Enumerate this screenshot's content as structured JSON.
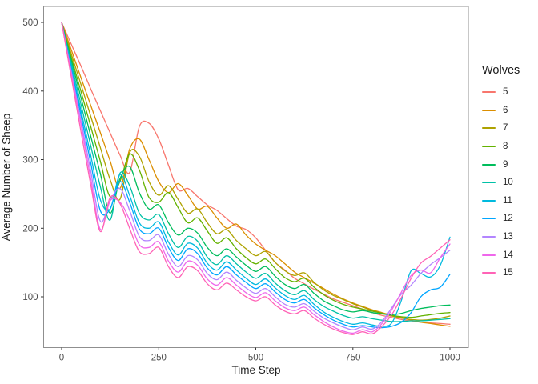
{
  "chart_data": {
    "type": "line",
    "title": "",
    "xlabel": "Time Step",
    "ylabel": "Average Number of Sheep",
    "legend_title": "Wolves",
    "legend_position": "right",
    "grid": false,
    "panel_background": "#FFFFFF",
    "panel_border_color": "#8F8F8F",
    "tick_color": "#333333",
    "tick_label_color": "#4D4D4D",
    "x_ticks": [
      0,
      250,
      500,
      750,
      1000
    ],
    "y_ticks": [
      100,
      200,
      300,
      400,
      500
    ],
    "xlim": [
      -46,
      1047
    ],
    "ylim": [
      26,
      523
    ],
    "x_step": 25,
    "x": [
      0,
      25,
      50,
      75,
      100,
      125,
      150,
      175,
      200,
      225,
      250,
      275,
      300,
      325,
      350,
      375,
      400,
      425,
      450,
      475,
      500,
      525,
      550,
      575,
      600,
      625,
      650,
      675,
      700,
      725,
      750,
      775,
      800,
      825,
      850,
      875,
      900,
      925,
      950,
      975,
      1000
    ],
    "series": [
      {
        "name": "5",
        "color": "#F8766D",
        "values": [
          500,
          468,
          436,
          403,
          371,
          339,
          307,
          281,
          348,
          353,
          330,
          292,
          256,
          258,
          246,
          234,
          226,
          214,
          203,
          198,
          186,
          168,
          150,
          139,
          127,
          119,
          111,
          104,
          97,
          92,
          87,
          82,
          77,
          73,
          70,
          67,
          65,
          63,
          62,
          61,
          60
        ]
      },
      {
        "name": "6",
        "color": "#DB8E00",
        "values": [
          500,
          460,
          419,
          379,
          339,
          298,
          258,
          315,
          330,
          300,
          268,
          252,
          265,
          248,
          228,
          232,
          215,
          200,
          206,
          190,
          177,
          168,
          160,
          148,
          136,
          128,
          120,
          112,
          104,
          97,
          91,
          86,
          81,
          77,
          73,
          70,
          66,
          63,
          61,
          59,
          57
        ]
      },
      {
        "name": "7",
        "color": "#AEA200",
        "values": [
          500,
          454,
          409,
          363,
          317,
          271,
          242,
          310,
          305,
          268,
          248,
          262,
          242,
          222,
          228,
          208,
          192,
          198,
          182,
          170,
          160,
          166,
          150,
          138,
          131,
          135,
          121,
          110,
          102,
          96,
          90,
          85,
          80,
          76,
          72,
          69,
          67,
          66,
          67,
          69,
          72
        ]
      },
      {
        "name": "8",
        "color": "#64B200",
        "values": [
          500,
          449,
          399,
          348,
          297,
          246,
          268,
          308,
          285,
          245,
          238,
          252,
          230,
          208,
          215,
          196,
          178,
          186,
          170,
          157,
          148,
          155,
          141,
          128,
          122,
          127,
          114,
          103,
          95,
          89,
          85,
          82,
          79,
          76,
          73,
          71,
          70,
          72,
          74,
          76,
          77
        ]
      },
      {
        "name": "9",
        "color": "#00BD5C",
        "values": [
          500,
          445,
          390,
          334,
          279,
          222,
          272,
          290,
          252,
          228,
          234,
          208,
          190,
          200,
          193,
          172,
          160,
          170,
          158,
          146,
          137,
          144,
          130,
          118,
          112,
          118,
          105,
          94,
          87,
          81,
          78,
          80,
          77,
          75,
          74,
          76,
          80,
          83,
          85,
          87,
          88
        ]
      },
      {
        "name": "10",
        "color": "#00C1A7",
        "values": [
          500,
          440,
          380,
          320,
          260,
          212,
          280,
          262,
          222,
          212,
          220,
          192,
          172,
          188,
          181,
          158,
          147,
          160,
          148,
          136,
          127,
          134,
          120,
          109,
          103,
          109,
          96,
          86,
          79,
          73,
          69,
          71,
          68,
          66,
          64,
          64,
          65,
          65,
          66,
          67,
          68
        ]
      },
      {
        "name": "11",
        "color": "#00BADE",
        "values": [
          500,
          435,
          371,
          306,
          241,
          228,
          278,
          248,
          208,
          200,
          209,
          180,
          161,
          178,
          171,
          149,
          139,
          151,
          139,
          127,
          118,
          126,
          113,
          102,
          96,
          102,
          89,
          78,
          70,
          64,
          60,
          62,
          59,
          57,
          62,
          95,
          138,
          134,
          129,
          146,
          187
        ]
      },
      {
        "name": "12",
        "color": "#00A6FF",
        "values": [
          500,
          432,
          364,
          295,
          225,
          228,
          268,
          238,
          199,
          192,
          200,
          172,
          153,
          170,
          163,
          142,
          132,
          144,
          132,
          121,
          112,
          119,
          107,
          96,
          91,
          96,
          84,
          74,
          66,
          60,
          56,
          58,
          56,
          55,
          57,
          63,
          77,
          100,
          110,
          114,
          133
        ]
      },
      {
        "name": "13",
        "color": "#B385FF",
        "values": [
          500,
          428,
          356,
          283,
          210,
          240,
          258,
          226,
          188,
          182,
          190,
          162,
          144,
          160,
          154,
          134,
          125,
          136,
          124,
          113,
          105,
          112,
          100,
          89,
          85,
          90,
          79,
          69,
          62,
          56,
          52,
          56,
          53,
          64,
          84,
          104,
          117,
          134,
          147,
          157,
          168
        ]
      },
      {
        "name": "14",
        "color": "#EF67EB",
        "values": [
          500,
          425,
          350,
          272,
          198,
          240,
          238,
          212,
          176,
          172,
          180,
          152,
          136,
          152,
          146,
          126,
          117,
          128,
          117,
          106,
          99,
          106,
          94,
          84,
          80,
          85,
          74,
          64,
          56,
          50,
          47,
          52,
          49,
          61,
          81,
          107,
          131,
          139,
          135,
          157,
          177
        ]
      },
      {
        "name": "15",
        "color": "#FF63B6",
        "values": [
          500,
          420,
          340,
          263,
          195,
          245,
          236,
          200,
          166,
          163,
          172,
          144,
          128,
          144,
          138,
          119,
          110,
          120,
          110,
          100,
          94,
          100,
          88,
          79,
          75,
          80,
          69,
          60,
          53,
          48,
          45,
          49,
          46,
          57,
          74,
          99,
          127,
          149,
          159,
          171,
          183
        ]
      }
    ]
  }
}
